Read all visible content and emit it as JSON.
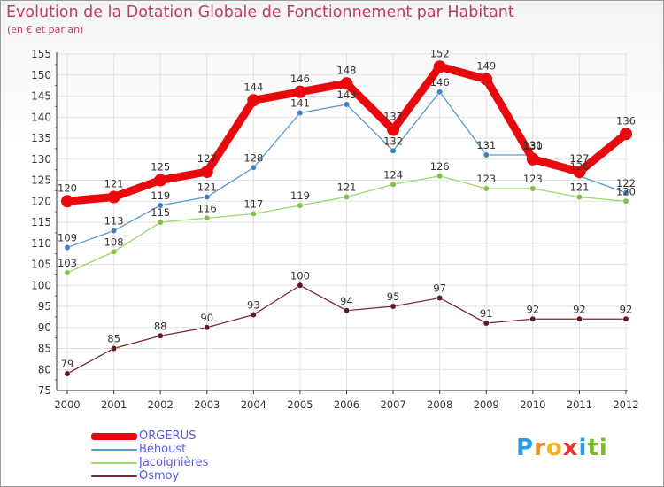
{
  "header": {
    "title": "Evolution de la Dotation Globale de Fonctionnement par Habitant",
    "subtitle": "(en € et par an)"
  },
  "colors": {
    "title": "#c03a6a",
    "grid": "#e2e2e2",
    "axis": "#333333",
    "tick_marks": "#d03040",
    "legend_text": "#5a5ae6"
  },
  "chart_data": {
    "type": "line",
    "title": "Evolution de la Dotation Globale de Fonctionnement par Habitant",
    "subtitle": "(en € et par an)",
    "xlabel": "",
    "ylabel": "",
    "x": [
      "2000",
      "2001",
      "2002",
      "2003",
      "2004",
      "2005",
      "2006",
      "2007",
      "2008",
      "2009",
      "2010",
      "2011",
      "2012"
    ],
    "ylim": [
      75,
      155
    ],
    "yticks": [
      75,
      80,
      85,
      90,
      95,
      100,
      105,
      110,
      115,
      120,
      125,
      130,
      135,
      140,
      145,
      150,
      155
    ],
    "grid": true,
    "legend_position": "bottom-left",
    "series": [
      {
        "name": "ORGERUS",
        "values": [
          120,
          121,
          125,
          127,
          144,
          146,
          148,
          137,
          152,
          149,
          130,
          127,
          136
        ],
        "color": "#e8090f",
        "emphasis": true
      },
      {
        "name": "Béhoust",
        "values": [
          109,
          113,
          119,
          121,
          128,
          141,
          143,
          132,
          146,
          131,
          131,
          126,
          122
        ],
        "color": "#5a9acf",
        "marker_color": "#3f83c2",
        "emphasis": false
      },
      {
        "name": "Jacoignières",
        "values": [
          103,
          108,
          115,
          116,
          117,
          119,
          121,
          124,
          126,
          123,
          123,
          121,
          120
        ],
        "color": "#99d86a",
        "marker_color": "#7fc04a",
        "emphasis": false
      },
      {
        "name": "Osmoy",
        "values": [
          79,
          85,
          88,
          90,
          93,
          100,
          94,
          95,
          97,
          91,
          92,
          92,
          92
        ],
        "color": "#7a2a30",
        "marker_color": "#5e1a20",
        "emphasis": false
      }
    ]
  },
  "logo": {
    "letters": [
      "P",
      "r",
      "o",
      "x",
      "i",
      "t",
      "i"
    ],
    "colors": [
      "#2d9be0",
      "#ee8a1e",
      "#f0b41c",
      "#e23b2e",
      "#2d9be0",
      "#7bbb2a",
      "#7bbb2a"
    ]
  }
}
